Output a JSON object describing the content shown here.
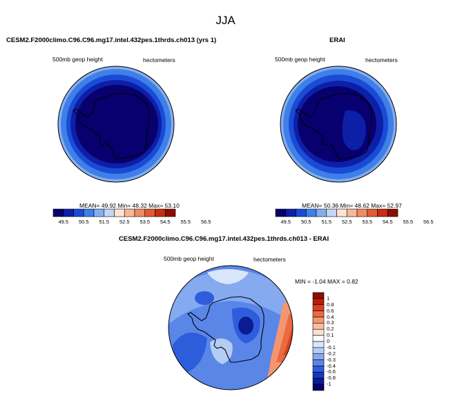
{
  "figure": {
    "title": "JJA"
  },
  "panel_model": {
    "title": "CESM2.F2000climo.C96.C96.mg17.intel.432pes.1thrds.ch013 (yrs 1)",
    "variable": "500mb geop height",
    "units": "hectometers",
    "stats": "MEAN= 49.92  Min= 48.32  Max= 53.10"
  },
  "panel_obs": {
    "title": "ERAI",
    "variable": "500mb geop height",
    "units": "hectometers",
    "stats": "MEAN= 50.36  Min= 48.62  Max= 52.97"
  },
  "panel_diff": {
    "title": "CESM2.F2000climo.C96.C96.mg17.intel.432pes.1thrds.ch013 - ERAI",
    "variable": "500mb geop height",
    "units": "hectometers",
    "stats": "MIN = -1.04 MAX = 0.82"
  },
  "colorbar_abs": {
    "labels": [
      "49.5",
      "50.5",
      "51.5",
      "52.5",
      "53.5",
      "54.5",
      "55.5",
      "56.5"
    ],
    "colors": [
      "#08006e",
      "#0d1fa6",
      "#1a4bd6",
      "#3f7fe8",
      "#85aef0",
      "#c3d6f5",
      "#ffe4d6",
      "#f8b898",
      "#f28b63",
      "#e35a33",
      "#c92c12",
      "#8e0d02"
    ]
  },
  "colorbar_diff": {
    "labels": [
      "1",
      "0.8",
      "0.6",
      "0.4",
      "0.3",
      "0.2",
      "0.1",
      "0",
      "-0.1",
      "-0.2",
      "-0.3",
      "-0.4",
      "-0.6",
      "-0.8",
      "-1"
    ],
    "colors": [
      "#8e0d02",
      "#b71f08",
      "#d8421e",
      "#eb6a3f",
      "#f39670",
      "#f7bea2",
      "#fbe0d2",
      "#ffffff",
      "#d9e6fa",
      "#b3cdf5",
      "#86aaf0",
      "#5a86e8",
      "#2e5ddc",
      "#1537c0",
      "#0a1b94",
      "#08006e"
    ]
  },
  "chart_data": [
    {
      "type": "heatmap",
      "projection": "south-polar-stereographic",
      "title": "CESM2.F2000climo.C96.C96.mg17.intel.432pes.1thrds.ch013 (yrs 1)",
      "variable": "500mb geop height",
      "units": "hectometers",
      "mean": 49.92,
      "min": 48.32,
      "max": 53.1,
      "levels": [
        49.5,
        50.0,
        50.5,
        51.0,
        51.5,
        52.0,
        52.5,
        53.0,
        53.5,
        54.0,
        54.5,
        55.0,
        55.5,
        56.0,
        56.5
      ]
    },
    {
      "type": "heatmap",
      "projection": "south-polar-stereographic",
      "title": "ERAI",
      "variable": "500mb geop height",
      "units": "hectometers",
      "mean": 50.36,
      "min": 48.62,
      "max": 52.97,
      "levels": [
        49.5,
        50.0,
        50.5,
        51.0,
        51.5,
        52.0,
        52.5,
        53.0,
        53.5,
        54.0,
        54.5,
        55.0,
        55.5,
        56.0,
        56.5
      ]
    },
    {
      "type": "heatmap",
      "projection": "south-polar-stereographic",
      "title": "CESM2.F2000climo.C96.C96.mg17.intel.432pes.1thrds.ch013 - ERAI",
      "variable": "500mb geop height",
      "units": "hectometers",
      "min": -1.04,
      "max": 0.82,
      "levels": [
        -1,
        -0.8,
        -0.6,
        -0.4,
        -0.3,
        -0.2,
        -0.1,
        0,
        0.1,
        0.2,
        0.3,
        0.4,
        0.6,
        0.8,
        1
      ]
    }
  ]
}
